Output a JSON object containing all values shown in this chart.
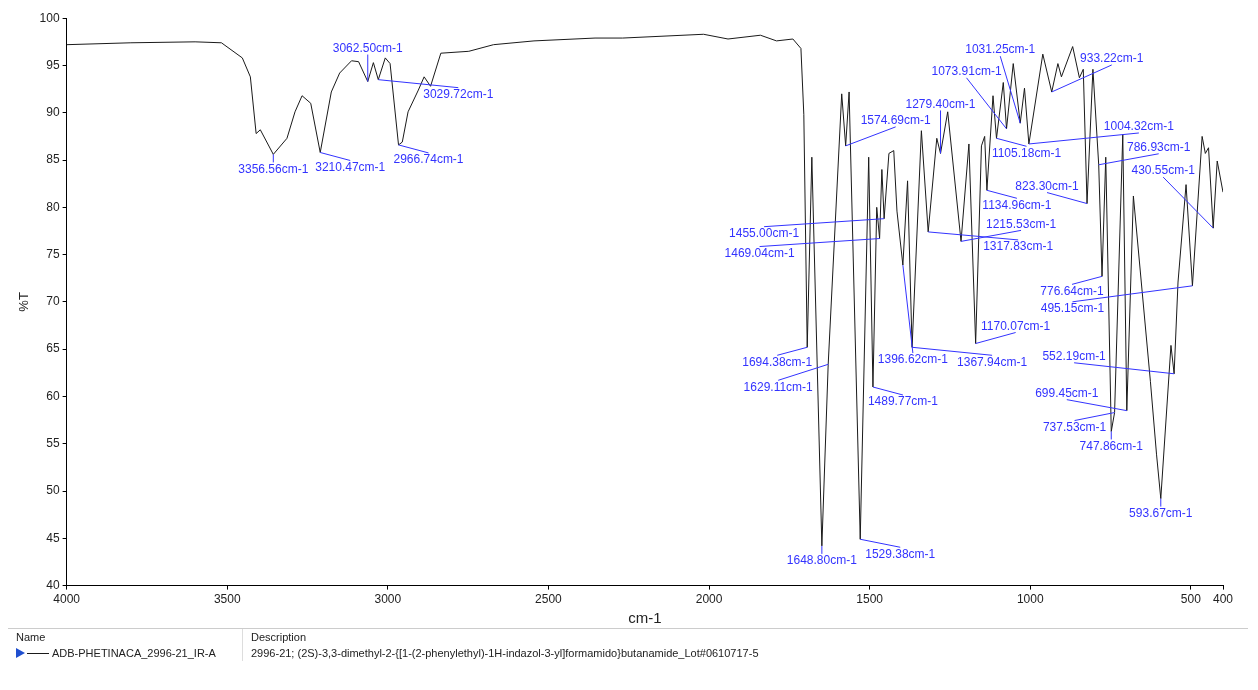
{
  "chart_data": {
    "type": "line",
    "xlabel": "cm-1",
    "ylabel": "%T",
    "legend_title": "Name",
    "legend": "bottom",
    "grid": false,
    "xlim": [
      4000,
      400
    ],
    "xticks": [
      4000,
      3500,
      3000,
      2500,
      2000,
      1500,
      1000,
      500,
      400
    ],
    "ylim": [
      40,
      100
    ],
    "yticks": [
      40,
      45,
      50,
      55,
      60,
      65,
      70,
      75,
      80,
      85,
      90,
      95,
      100
    ],
    "series": [
      {
        "name": "ADB-PHETINACA_2996-21_IR-A",
        "color": "#1a1a1a",
        "x": [
          4000,
          3800,
          3600,
          3518,
          3453,
          3428,
          3410,
          3397,
          3356.56,
          3314,
          3289,
          3267,
          3240,
          3210.47,
          3176,
          3150,
          3113,
          3091,
          3062.5,
          3045,
          3029.72,
          3008,
          2993,
          2966.74,
          2955,
          2937,
          2905,
          2887,
          2867,
          2835,
          2748,
          2671,
          2545,
          2355,
          2269,
          2017,
          1941,
          1840,
          1790,
          1739,
          1714,
          1705,
          1694.38,
          1680,
          1648.8,
          1629.11,
          1587,
          1574.69,
          1564,
          1529.38,
          1503,
          1489.77,
          1478,
          1469.04,
          1462,
          1455,
          1440,
          1425,
          1415,
          1396.62,
          1382,
          1367.94,
          1339,
          1317.83,
          1291,
          1279.4,
          1257,
          1215.53,
          1191,
          1170.07,
          1152,
          1142,
          1134.96,
          1116,
          1105.18,
          1084,
          1073.91,
          1053,
          1031.25,
          1018,
          1004.32,
          961,
          933.22,
          914,
          903,
          868,
          847,
          835,
          823.3,
          805,
          786.93,
          776.64,
          765,
          747.86,
          737.53,
          712,
          699.45,
          679,
          626,
          607,
          593.67,
          562,
          552.19,
          540,
          515,
          495.15,
          465,
          455,
          445,
          430.55,
          418,
          400
        ],
        "values": [
          97.2,
          97.4,
          97.5,
          97.4,
          95.8,
          93.8,
          87.8,
          88.2,
          85.6,
          87.3,
          90.1,
          91.8,
          91.0,
          85.8,
          92.2,
          94.2,
          95.5,
          95.4,
          93.3,
          95.3,
          93.5,
          95.8,
          95.2,
          86.6,
          86.9,
          90.1,
          92.4,
          93.8,
          92.8,
          96.3,
          96.5,
          97.2,
          97.6,
          97.9,
          97.9,
          98.3,
          97.8,
          98.2,
          97.6,
          97.8,
          96.8,
          89.8,
          65.2,
          85.3,
          44.2,
          63.4,
          92.0,
          86.5,
          92.2,
          44.9,
          85.3,
          61.0,
          80.0,
          76.7,
          84.0,
          78.8,
          85.7,
          86.0,
          79.6,
          73.9,
          82.8,
          65.2,
          88.1,
          77.4,
          87.3,
          85.7,
          90.1,
          76.4,
          86.7,
          65.6,
          86.5,
          87.5,
          81.8,
          91.8,
          87.3,
          93.2,
          88.3,
          95.2,
          88.9,
          92.6,
          86.7,
          96.2,
          92.2,
          95.2,
          93.8,
          97.0,
          93.7,
          94.6,
          80.4,
          94.6,
          84.5,
          72.7,
          85.3,
          56.3,
          58.3,
          87.7,
          58.5,
          81.2,
          61.6,
          53.9,
          49.2,
          65.4,
          62.4,
          72.1,
          82.4,
          71.7,
          87.5,
          85.7,
          86.3,
          77.8,
          84.9,
          81.6
        ]
      }
    ],
    "annotations": [
      "Description",
      "2996-21; (2S)-3,3-dimethyl-2-{[1-(2-phenylethyl)-1H-indazol-3-yl]formamido}butanamide_Lot#0610717-5",
      {
        "text": "3356.56cm-1",
        "x": 3356.56,
        "y": 85.6
      },
      {
        "text": "3210.47cm-1",
        "x": 3210.47,
        "y": 85.8
      },
      {
        "text": "3062.50cm-1",
        "x": 3062.5,
        "y": 93.3
      },
      {
        "text": "3029.72cm-1",
        "x": 3029.72,
        "y": 93.5
      },
      {
        "text": "2966.74cm-1",
        "x": 2966.74,
        "y": 86.6
      },
      {
        "text": "1694.38cm-1",
        "x": 1694.38,
        "y": 65.2
      },
      {
        "text": "1648.80cm-1",
        "x": 1648.8,
        "y": 44.2
      },
      {
        "text": "1629.11cm-1",
        "x": 1629.11,
        "y": 63.4
      },
      {
        "text": "1574.69cm-1",
        "x": 1574.69,
        "y": 86.5
      },
      {
        "text": "1529.38cm-1",
        "x": 1529.38,
        "y": 44.9
      },
      {
        "text": "1489.77cm-1",
        "x": 1489.77,
        "y": 61.0
      },
      {
        "text": "1469.04cm-1",
        "x": 1469.04,
        "y": 76.7
      },
      {
        "text": "1455.00cm-1",
        "x": 1455.0,
        "y": 78.8
      },
      {
        "text": "1396.62cm-1",
        "x": 1396.62,
        "y": 73.9
      },
      {
        "text": "1367.94cm-1",
        "x": 1367.94,
        "y": 65.2
      },
      {
        "text": "1317.83cm-1",
        "x": 1317.83,
        "y": 77.4
      },
      {
        "text": "1279.40cm-1",
        "x": 1279.4,
        "y": 85.7
      },
      {
        "text": "1215.53cm-1",
        "x": 1215.53,
        "y": 76.4
      },
      {
        "text": "1170.07cm-1",
        "x": 1170.07,
        "y": 65.6
      },
      {
        "text": "1134.96cm-1",
        "x": 1134.96,
        "y": 81.8
      },
      {
        "text": "1105.18cm-1",
        "x": 1105.18,
        "y": 87.3
      },
      {
        "text": "1073.91cm-1",
        "x": 1073.91,
        "y": 88.3
      },
      {
        "text": "1031.25cm-1",
        "x": 1031.25,
        "y": 88.9
      },
      {
        "text": "1004.32cm-1",
        "x": 1004.32,
        "y": 86.7
      },
      {
        "text": "933.22cm-1",
        "x": 933.22,
        "y": 92.2
      },
      {
        "text": "823.30cm-1",
        "x": 823.3,
        "y": 80.4
      },
      {
        "text": "786.93cm-1",
        "x": 786.93,
        "y": 84.5
      },
      {
        "text": "776.64cm-1",
        "x": 776.64,
        "y": 72.7
      },
      {
        "text": "747.86cm-1",
        "x": 747.86,
        "y": 56.3
      },
      {
        "text": "737.53cm-1",
        "x": 737.53,
        "y": 58.3
      },
      {
        "text": "699.45cm-1",
        "x": 699.45,
        "y": 58.5
      },
      {
        "text": "593.67cm-1",
        "x": 593.67,
        "y": 49.2
      },
      {
        "text": "552.19cm-1",
        "x": 552.19,
        "y": 62.4
      },
      {
        "text": "495.15cm-1",
        "x": 495.15,
        "y": 71.7
      },
      {
        "text": "430.55cm-1",
        "x": 430.55,
        "y": 77.8
      }
    ]
  }
}
